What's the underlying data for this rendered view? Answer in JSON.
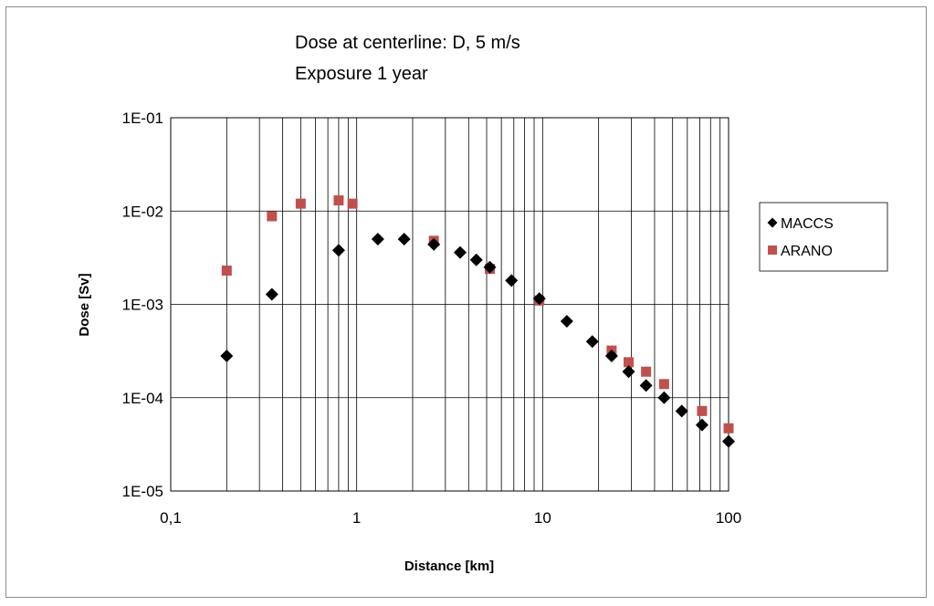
{
  "chart_data": {
    "type": "scatter",
    "title_lines": [
      "Dose at centerline: D, 5 m/s",
      "Exposure 1 year"
    ],
    "xlabel": "Distance [km]",
    "ylabel": "Dose [Sv]",
    "x_scale": "log",
    "y_scale": "log",
    "xlim": [
      0.1,
      100
    ],
    "ylim": [
      1e-05,
      0.1
    ],
    "x_ticks": [
      {
        "value": 0.1,
        "label": "0,1"
      },
      {
        "value": 1,
        "label": "1"
      },
      {
        "value": 10,
        "label": "10"
      },
      {
        "value": 100,
        "label": "100"
      }
    ],
    "y_ticks": [
      {
        "value": 0.1,
        "label": "1E-01"
      },
      {
        "value": 0.01,
        "label": "1E-02"
      },
      {
        "value": 0.001,
        "label": "1E-03"
      },
      {
        "value": 0.0001,
        "label": "1E-04"
      },
      {
        "value": 1e-05,
        "label": "1E-05"
      }
    ],
    "grid": true,
    "legend_position": "right",
    "series": [
      {
        "name": "MACCS",
        "marker": "diamond",
        "color": "#000000",
        "points": [
          [
            0.2,
            0.00028
          ],
          [
            0.35,
            0.00128
          ],
          [
            0.8,
            0.0038
          ],
          [
            1.3,
            0.005
          ],
          [
            1.8,
            0.005
          ],
          [
            2.6,
            0.0044
          ],
          [
            3.6,
            0.0036
          ],
          [
            4.4,
            0.003
          ],
          [
            5.2,
            0.0025
          ],
          [
            6.8,
            0.0018
          ],
          [
            9.6,
            0.00115
          ],
          [
            13.5,
            0.00066
          ],
          [
            18.5,
            0.0004
          ],
          [
            23.5,
            0.00028
          ],
          [
            29,
            0.00019
          ],
          [
            36,
            0.000135
          ],
          [
            45,
            0.0001
          ],
          [
            56,
            7.2e-05
          ],
          [
            72,
            5.1e-05
          ],
          [
            100,
            3.4e-05
          ]
        ]
      },
      {
        "name": "ARANO",
        "marker": "square",
        "color": "#c0504d",
        "points": [
          [
            0.2,
            0.0023
          ],
          [
            0.35,
            0.0088
          ],
          [
            0.5,
            0.012
          ],
          [
            0.8,
            0.013
          ],
          [
            0.95,
            0.012
          ],
          [
            2.6,
            0.0048
          ],
          [
            5.2,
            0.0024
          ],
          [
            9.6,
            0.0011
          ],
          [
            23.5,
            0.00032
          ],
          [
            29,
            0.00024
          ],
          [
            36,
            0.00019
          ],
          [
            45,
            0.00014
          ],
          [
            72,
            7.2e-05
          ],
          [
            100,
            4.7e-05
          ]
        ]
      }
    ]
  }
}
